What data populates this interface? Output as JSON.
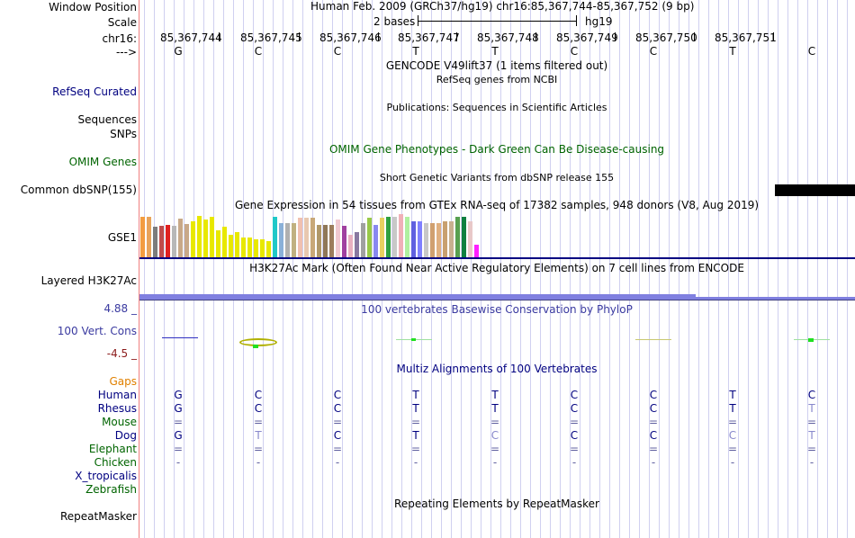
{
  "labels": {
    "window_position": "Window Position",
    "scale": "Scale",
    "chrom": "chr16:",
    "strand": "--->",
    "refseq": "RefSeq Curated",
    "sequences": "Sequences",
    "snps": "SNPs",
    "omim": "OMIM Genes",
    "dbsnp": "Common dbSNP(155)",
    "gse1": "GSE1",
    "h3k27ac": "Layered H3K27Ac",
    "cons_max": "4.88 _",
    "cons_name": "100 Vert. Cons",
    "cons_min": "-4.5 _",
    "gaps": "Gaps",
    "species": [
      "Human",
      "Rhesus",
      "Mouse",
      "Dog",
      "Elephant",
      "Chicken",
      "X_tropicalis",
      "Zebrafish"
    ],
    "repeatmasker": "RepeatMasker"
  },
  "header": {
    "position": "Human Feb. 2009 (GRCh37/hg19)   chr16:85,367,744-85,367,752 (9 bp)",
    "scale_text": "2 bases",
    "assembly": "hg19"
  },
  "ruler": {
    "positions": [
      "85,367,744",
      "85,367,745",
      "85,367,746",
      "85,367,747",
      "85,367,748",
      "85,367,749",
      "85,367,750",
      "85,367,751"
    ]
  },
  "bases": [
    "G",
    "C",
    "C",
    "T",
    "T",
    "C",
    "C",
    "T",
    "C"
  ],
  "tracks": {
    "gencode": "GENCODE V49lift37 (1 items filtered out)",
    "refseq_sub": "RefSeq genes from NCBI",
    "publications": "Publications: Sequences in Scientific Articles",
    "omim_title": "OMIM Gene Phenotypes - Dark Green Can Be Disease-causing",
    "dbsnp_sub": "Short Genetic Variants from dbSNP release 155",
    "gtex_title": "Gene Expression in 54 tissues from GTEx RNA-seq of 17382 samples, 948 donors (V8, Aug 2019)",
    "h3k27ac_title": "H3K27Ac Mark (Often Found Near Active Regulatory Elements) on 7 cell lines from ENCODE",
    "phylop_title": "100 vertebrates Basewise Conservation by PhyloP",
    "multiz_title": "Multiz Alignments of 100 Vertebrates",
    "repeat_title": "Repeating Elements by RepeatMasker"
  },
  "alignment": {
    "human": [
      "G",
      "C",
      "C",
      "T",
      "T",
      "C",
      "C",
      "T",
      "C"
    ],
    "rhesus": [
      "G",
      "C",
      "C",
      "T",
      "T",
      "C",
      "C",
      "T",
      "T"
    ],
    "mouse": [
      "=",
      "=",
      "=",
      "=",
      "=",
      "=",
      "=",
      "=",
      "="
    ],
    "dog": [
      "G",
      "T",
      "C",
      "T",
      "C",
      "C",
      "C",
      "C",
      "T"
    ],
    "elephant": [
      "=",
      "=",
      "=",
      "=",
      "=",
      "=",
      "=",
      "=",
      "="
    ],
    "chicken": [
      "-",
      "-",
      "-",
      "-",
      "-",
      "-",
      "-",
      "-",
      "-"
    ]
  },
  "gtex_colors": [
    "#f39c40",
    "#e8a35a",
    "#7c7c7c",
    "#c04a4a",
    "#e02020",
    "#b8b8b8",
    "#c8a888",
    "#c8a888",
    "#e8e800",
    "#e8e800",
    "#e8e800",
    "#e8e800",
    "#e8e800",
    "#e8e800",
    "#e8e800",
    "#e8e800",
    "#e8e800",
    "#e8e800",
    "#e8e800",
    "#e8e800",
    "#e8e800",
    "#20c8c8",
    "#8ab0d8",
    "#b0b0b0",
    "#c0b080",
    "#f0c0b0",
    "#e8c8b0",
    "#c8a878",
    "#b09868",
    "#907858",
    "#9c7c5c",
    "#f0c8d0",
    "#a040a0",
    "#e8b0c0",
    "#8878a0",
    "#a0a0a0",
    "#98c848",
    "#8888f0",
    "#e8d060",
    "#30a040",
    "#c8c8c8",
    "#f0b0b8",
    "#b0f0a0",
    "#6060e0",
    "#8080ff",
    "#c8c8c8",
    "#d0a070",
    "#e0b080",
    "#c8a070",
    "#c8b090",
    "#58a050",
    "#108040",
    "#e8c8c8",
    "#ff20ff"
  ],
  "gtex_values": [
    45,
    45,
    34,
    35,
    36,
    35,
    43,
    37,
    40,
    46,
    42,
    45,
    30,
    34,
    25,
    28,
    22,
    22,
    20,
    20,
    18,
    45,
    38,
    38,
    38,
    44,
    44,
    44,
    36,
    36,
    36,
    42,
    35,
    25,
    28,
    38,
    44,
    36,
    44,
    45,
    45,
    48,
    45,
    40,
    40,
    38,
    38,
    38,
    40,
    40,
    45,
    45,
    40,
    14
  ]
}
